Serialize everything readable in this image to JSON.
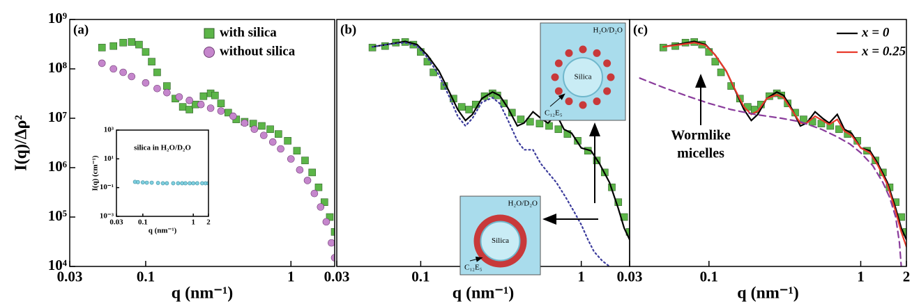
{
  "chart_data": [
    {
      "type": "scatter",
      "label": "(a)",
      "xlabel": "q (nm⁻¹)",
      "ylabel": "I(q)/Δρ²",
      "xscale": "log",
      "yscale": "log",
      "xlim": [
        0.03,
        2
      ],
      "ylim": [
        10000,
        1000000000
      ],
      "xticks": [
        0.03,
        0.1,
        1
      ],
      "yticks": [
        {
          "value": 10000,
          "label": "10⁴"
        },
        {
          "value": 100000,
          "label": "10⁵"
        },
        {
          "value": 1000000,
          "label": "10⁶"
        },
        {
          "value": 10000000,
          "label": "10⁷"
        },
        {
          "value": 100000000,
          "label": "10⁸"
        },
        {
          "value": 1000000000,
          "label": "10⁹"
        }
      ],
      "legend": "upper right",
      "series": [
        {
          "name": "with silica",
          "color": "#5cb548",
          "marker": "square",
          "x": [
            0.05,
            0.06,
            0.07,
            0.08,
            0.09,
            0.1,
            0.11,
            0.12,
            0.14,
            0.16,
            0.18,
            0.2,
            0.22,
            0.25,
            0.28,
            0.3,
            0.33,
            0.37,
            0.42,
            0.48,
            0.55,
            0.63,
            0.72,
            0.82,
            0.95,
            1.1,
            1.25,
            1.4,
            1.55,
            1.7,
            1.85,
            2
          ],
          "values": [
            270000000.0,
            290000000.0,
            340000000.0,
            350000000.0,
            310000000.0,
            220000000.0,
            140000000.0,
            85000000.0,
            45000000.0,
            25000000.0,
            17000000.0,
            15000000.0,
            19000000.0,
            28000000.0,
            32000000.0,
            29000000.0,
            20000000.0,
            13000000.0,
            9500000.0,
            8500000.0,
            7800000.0,
            7000000.0,
            6000000.0,
            4800000.0,
            3500000.0,
            2200000.0,
            1400000.0,
            800000.0,
            400000.0,
            200000.0,
            100000.0,
            50000.0
          ]
        },
        {
          "name": "without silica",
          "color": "#c586cc",
          "marker": "circle",
          "x": [
            0.05,
            0.06,
            0.07,
            0.08,
            0.1,
            0.12,
            0.14,
            0.17,
            0.2,
            0.24,
            0.28,
            0.33,
            0.4,
            0.48,
            0.56,
            0.65,
            0.75,
            0.85,
            1,
            1.15,
            1.3,
            1.45,
            1.6,
            1.75,
            1.9,
            2
          ],
          "values": [
            130000000.0,
            100000000.0,
            85000000.0,
            70000000.0,
            52000000.0,
            40000000.0,
            33000000.0,
            27000000.0,
            23000000.0,
            19000000.0,
            16000000.0,
            14000000.0,
            11000000.0,
            8000000.0,
            6000000.0,
            4500000.0,
            3300000.0,
            2400000.0,
            1500000.0,
            900000.0,
            550000.0,
            300000.0,
            160000.0,
            80000.0,
            30000.0,
            15000.0
          ]
        }
      ]
    },
    {
      "type": "line",
      "label": "(b)",
      "xlabel": "q (nm⁻¹)",
      "xscale": "log",
      "yscale": "log",
      "xlim": [
        0.03,
        2
      ],
      "ylim": [
        10000,
        1000000000
      ],
      "xticks": [
        0.03,
        0.1,
        1
      ],
      "insets": [
        {
          "solvent": "H₂O/D₂O",
          "core": "Silica",
          "surfactant": "C₁₂E₅"
        },
        {
          "solvent": "H₂O/D₂O",
          "core": "Silica",
          "surfactant": "C₁₂E₅"
        }
      ],
      "series": [
        {
          "color": "#5cb548",
          "marker": "square",
          "x": [
            0.05,
            0.06,
            0.07,
            0.08,
            0.09,
            0.1,
            0.11,
            0.12,
            0.14,
            0.16,
            0.18,
            0.2,
            0.22,
            0.25,
            0.28,
            0.3,
            0.33,
            0.37,
            0.42,
            0.48,
            0.55,
            0.63,
            0.72,
            0.82,
            0.95,
            1.1,
            1.25,
            1.4,
            1.55,
            1.7,
            1.85,
            2
          ],
          "values": [
            270000000.0,
            290000000.0,
            340000000.0,
            350000000.0,
            310000000.0,
            220000000.0,
            140000000.0,
            85000000.0,
            45000000.0,
            25000000.0,
            17000000.0,
            15000000.0,
            19000000.0,
            28000000.0,
            32000000.0,
            29000000.0,
            20000000.0,
            13000000.0,
            9500000.0,
            8500000.0,
            7800000.0,
            7000000.0,
            6000000.0,
            4800000.0,
            3500000.0,
            2200000.0,
            1400000.0,
            800000.0,
            400000.0,
            200000.0,
            100000.0,
            50000.0
          ]
        },
        {
          "color": "#000000",
          "line": "solid",
          "x": [
            0.05,
            0.065,
            0.08,
            0.095,
            0.11,
            0.13,
            0.15,
            0.17,
            0.19,
            0.21,
            0.24,
            0.28,
            0.31,
            0.35,
            0.4,
            0.44,
            0.5,
            0.56,
            0.62,
            0.7,
            0.78,
            0.87,
            1,
            1.15,
            1.3,
            1.5,
            1.7,
            1.85,
            2
          ],
          "values": [
            280000000.0,
            320000000.0,
            360000000.0,
            310000000.0,
            190000000.0,
            90000000.0,
            35000000.0,
            15000000.0,
            9000000.0,
            12000000.0,
            25000000.0,
            34000000.0,
            29000000.0,
            16000000.0,
            7000000.0,
            8000000.0,
            13500000.0,
            10000000.0,
            8000000.0,
            12000000.0,
            6000000.0,
            5000000.0,
            2500000.0,
            2200000.0,
            1200000.0,
            500000.0,
            150000.0,
            60000.0,
            35000.0
          ]
        },
        {
          "color": "#3b3b9c",
          "line": "dotted",
          "x": [
            0.05,
            0.065,
            0.08,
            0.095,
            0.11,
            0.13,
            0.15,
            0.17,
            0.19,
            0.21,
            0.24,
            0.28,
            0.31,
            0.35,
            0.4,
            0.44,
            0.5,
            0.56,
            0.62,
            0.7,
            0.8,
            0.9,
            1,
            1.1,
            1.2,
            1.35,
            1.5
          ],
          "values": [
            280000000.0,
            320000000.0,
            340000000.0,
            290000000.0,
            170000000.0,
            75000000.0,
            28000000.0,
            11000000.0,
            7000000.0,
            10000000.0,
            21000000.0,
            26000000.0,
            20000000.0,
            9000000.0,
            3500000.0,
            2300000.0,
            2300000.0,
            1200000.0,
            800000.0,
            500000.0,
            250000.0,
            130000.0,
            70000.0,
            35000.0,
            20000.0,
            13000.0,
            10000.0
          ]
        }
      ]
    },
    {
      "type": "line",
      "label": "(c)",
      "xlabel": "q (nm⁻¹)",
      "xscale": "log",
      "yscale": "log",
      "xlim": [
        0.03,
        2
      ],
      "ylim": [
        10000,
        1000000000
      ],
      "xticks": [
        0.03,
        0.1,
        1,
        2
      ],
      "legend": "upper right",
      "annotation": [
        "Wormlike",
        "micelles"
      ],
      "series": [
        {
          "color": "#5cb548",
          "marker": "square",
          "x": [
            0.05,
            0.06,
            0.07,
            0.08,
            0.09,
            0.1,
            0.11,
            0.12,
            0.14,
            0.16,
            0.18,
            0.2,
            0.22,
            0.25,
            0.28,
            0.3,
            0.33,
            0.37,
            0.42,
            0.48,
            0.55,
            0.63,
            0.72,
            0.82,
            0.95,
            1.1,
            1.25,
            1.4,
            1.55,
            1.7,
            1.85,
            2
          ],
          "values": [
            270000000.0,
            290000000.0,
            340000000.0,
            350000000.0,
            310000000.0,
            220000000.0,
            140000000.0,
            85000000.0,
            45000000.0,
            25000000.0,
            17000000.0,
            15000000.0,
            19000000.0,
            28000000.0,
            32000000.0,
            29000000.0,
            20000000.0,
            13000000.0,
            9500000.0,
            8500000.0,
            7800000.0,
            7000000.0,
            6000000.0,
            4800000.0,
            3500000.0,
            2200000.0,
            1400000.0,
            800000.0,
            400000.0,
            200000.0,
            100000.0,
            50000.0
          ]
        },
        {
          "name": "x = 0",
          "color": "#000000",
          "line": "solid",
          "x": [
            0.05,
            0.065,
            0.08,
            0.095,
            0.11,
            0.13,
            0.15,
            0.17,
            0.19,
            0.21,
            0.24,
            0.28,
            0.31,
            0.35,
            0.4,
            0.44,
            0.5,
            0.56,
            0.62,
            0.7,
            0.78,
            0.87,
            1,
            1.15,
            1.3,
            1.5,
            1.7,
            1.85,
            2
          ],
          "values": [
            280000000.0,
            320000000.0,
            360000000.0,
            310000000.0,
            190000000.0,
            90000000.0,
            35000000.0,
            15000000.0,
            9000000.0,
            12000000.0,
            25000000.0,
            34000000.0,
            29000000.0,
            16000000.0,
            7000000.0,
            8000000.0,
            13500000.0,
            10000000.0,
            8000000.0,
            12000000.0,
            6000000.0,
            5000000.0,
            2500000.0,
            2200000.0,
            1200000.0,
            500000.0,
            150000.0,
            60000.0,
            35000.0
          ]
        },
        {
          "name": "x = 0.25",
          "color": "#e8382a",
          "line": "solid",
          "x": [
            0.05,
            0.065,
            0.08,
            0.095,
            0.11,
            0.13,
            0.15,
            0.17,
            0.19,
            0.21,
            0.24,
            0.28,
            0.31,
            0.35,
            0.4,
            0.44,
            0.5,
            0.56,
            0.62,
            0.7,
            0.78,
            0.87,
            1,
            1.15,
            1.3,
            1.5,
            1.7,
            1.85,
            2
          ],
          "values": [
            280000000.0,
            310000000.0,
            340000000.0,
            300000000.0,
            190000000.0,
            90000000.0,
            36000000.0,
            17000000.0,
            12000000.0,
            14000000.0,
            25000000.0,
            30000000.0,
            26000000.0,
            15000000.0,
            8000000.0,
            8000000.0,
            11000000.0,
            9000000.0,
            7500000.0,
            9500000.0,
            5500000.0,
            4500000.0,
            2500000.0,
            2000000.0,
            1100000.0,
            450000.0,
            130000.0,
            50000.0,
            25000.0
          ]
        },
        {
          "color": "#8a3c9c",
          "line": "dashed",
          "x": [
            0.035,
            0.05,
            0.07,
            0.1,
            0.14,
            0.2,
            0.3,
            0.4,
            0.55,
            0.7,
            0.85,
            1,
            1.2,
            1.4,
            1.55,
            1.7,
            1.8,
            1.85
          ],
          "values": [
            65000000.0,
            42000000.0,
            29000000.0,
            20000000.0,
            15000000.0,
            12000000.0,
            10000000.0,
            8500000.0,
            6000000.0,
            4200000.0,
            3000000.0,
            2000000.0,
            1100000.0,
            500000.0,
            250000.0,
            100000.0,
            30000.0,
            10000.0
          ]
        }
      ]
    },
    {
      "type": "scatter",
      "title": "silica in H₂O/D₂O",
      "xlabel": "q (nm⁻¹)",
      "ylabel": "I(q) (cm⁻¹)",
      "xscale": "log",
      "yscale": "log",
      "xlim": [
        0.03,
        2
      ],
      "ylim": [
        0.001,
        1000
      ],
      "xticks": [
        0.03,
        0.1,
        1,
        2
      ],
      "yticks": [
        {
          "value": 0.001,
          "label": "10⁻³"
        },
        {
          "value": 0.1,
          "label": "10⁻¹"
        },
        {
          "value": 10,
          "label": "10¹"
        },
        {
          "value": 1000,
          "label": "10³"
        }
      ],
      "series": [
        {
          "color": "#7fcfdf",
          "marker": "circle",
          "x": [
            0.07,
            0.08,
            0.1,
            0.12,
            0.15,
            0.2,
            0.25,
            0.3,
            0.4,
            0.5,
            0.6,
            0.7,
            0.85,
            1,
            1.2,
            1.5,
            1.75,
            2
          ],
          "values": [
            0.25,
            0.24,
            0.23,
            0.22,
            0.22,
            0.21,
            0.2,
            0.2,
            0.2,
            0.2,
            0.2,
            0.2,
            0.2,
            0.2,
            0.2,
            0.2,
            0.2,
            0.2
          ]
        }
      ]
    }
  ]
}
